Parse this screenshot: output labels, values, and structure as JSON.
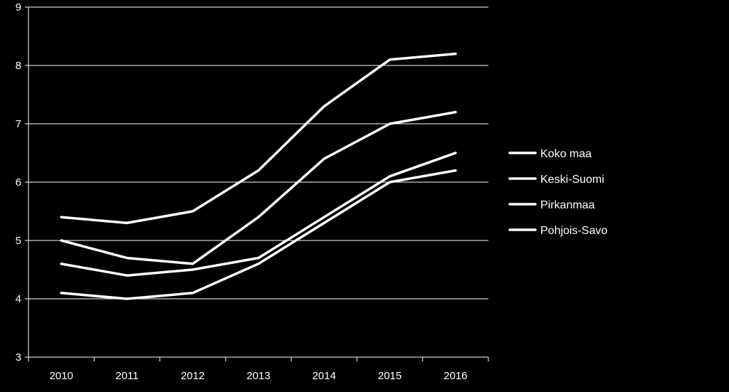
{
  "chart_data": {
    "type": "line",
    "title": "",
    "xlabel": "",
    "ylabel": "",
    "categories": [
      "2010",
      "2011",
      "2012",
      "2013",
      "2014",
      "2015",
      "2016"
    ],
    "ylim": [
      3,
      9
    ],
    "yticks": [
      3,
      4,
      5,
      6,
      7,
      8,
      9
    ],
    "grid": "horizontal",
    "legend_position": "right",
    "line_color": "#ffffff",
    "background_color": "#000000",
    "series": [
      {
        "name": "Koko maa",
        "values": [
          5.4,
          5.3,
          5.5,
          6.2,
          7.3,
          8.1,
          8.2
        ]
      },
      {
        "name": "Keski-Suomi",
        "values": [
          5.0,
          4.7,
          4.6,
          5.4,
          6.4,
          7.0,
          7.2
        ]
      },
      {
        "name": "Pirkanmaa",
        "values": [
          4.6,
          4.4,
          4.5,
          4.7,
          5.4,
          6.1,
          6.5
        ]
      },
      {
        "name": "Pohjois-Savo",
        "values": [
          4.1,
          4.0,
          4.1,
          4.6,
          5.3,
          6.0,
          6.2
        ]
      }
    ]
  }
}
